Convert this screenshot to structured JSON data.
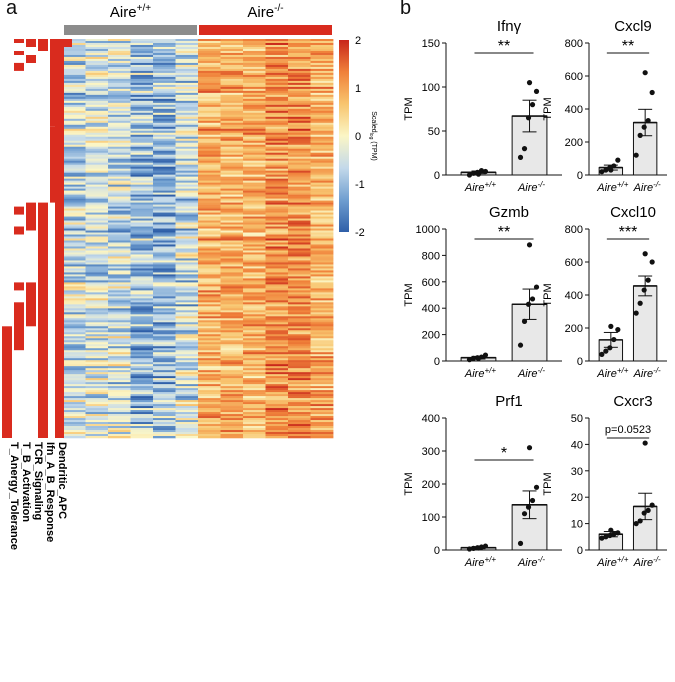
{
  "panel_labels": {
    "a": "a",
    "b": "b"
  },
  "chart_data": [
    {
      "type": "heatmap",
      "title": "",
      "groups": [
        {
          "name": "Aire",
          "superscript": "+/+",
          "color": "#8c8c8c",
          "n_columns": 6
        },
        {
          "name": "Aire",
          "superscript": "-/-",
          "color": "#d92b1e",
          "n_columns": 6
        }
      ],
      "n_rows": 200,
      "colorbar": {
        "label": "Scaled",
        "sublabel": "log",
        "label_suffix": "(TPM)",
        "ticks": [
          2,
          1,
          0,
          -1,
          -2
        ],
        "range": [
          -2,
          2
        ]
      },
      "scale_colors": [
        "#2f5fa8",
        "#6f9ed0",
        "#c3d9ea",
        "#fbf6c6",
        "#f8c56f",
        "#f0813a",
        "#c8261a"
      ],
      "annotation_color": "#d92b1e",
      "annotations": [
        {
          "label": "T_Anergy_Tolerance",
          "segments": [
            [
              0.72,
              1.0
            ]
          ]
        },
        {
          "label": "T_B_Activation",
          "segments": [
            [
              0.0,
              0.01
            ],
            [
              0.03,
              0.04
            ],
            [
              0.06,
              0.08
            ],
            [
              0.42,
              0.44
            ],
            [
              0.47,
              0.49
            ],
            [
              0.61,
              0.63
            ],
            [
              0.66,
              0.78
            ]
          ]
        },
        {
          "label": "TCR_Signaling",
          "segments": [
            [
              0.0,
              0.02
            ],
            [
              0.04,
              0.06
            ],
            [
              0.41,
              0.48
            ],
            [
              0.61,
              0.72
            ]
          ]
        },
        {
          "label": "Ifn_A_B_Response",
          "segments": [
            [
              0.0,
              0.03
            ],
            [
              0.41,
              1.0
            ]
          ]
        },
        {
          "label": "Dendritic_APC",
          "segments": [
            [
              0.0,
              0.22
            ],
            [
              0.22,
              0.41
            ]
          ]
        },
        {
          "label": "",
          "segments": [
            [
              0.0,
              0.02
            ]
          ]
        }
      ]
    },
    {
      "type": "bar",
      "title": "Ifnγ",
      "categories": [
        "Aire+/+",
        "Aire-/-"
      ],
      "values": [
        3,
        67
      ],
      "errors": [
        1.5,
        18
      ],
      "points": [
        [
          0,
          2,
          3,
          5,
          4,
          1
        ],
        [
          20,
          30,
          65,
          80,
          95,
          105
        ]
      ],
      "ylabel": "TPM",
      "ylim": [
        0,
        150
      ],
      "yticks": [
        0,
        50,
        100,
        150
      ],
      "significance": "**"
    },
    {
      "type": "bar",
      "title": "Cxcl9",
      "categories": [
        "Aire+/+",
        "Aire-/-"
      ],
      "values": [
        45,
        318
      ],
      "errors": [
        15,
        80
      ],
      "points": [
        [
          20,
          30,
          45,
          55,
          90,
          30
        ],
        [
          120,
          240,
          290,
          330,
          500,
          620
        ]
      ],
      "ylabel": "TPM",
      "ylim": [
        0,
        800
      ],
      "yticks": [
        0,
        200,
        400,
        600,
        800
      ],
      "significance": "**"
    },
    {
      "type": "bar",
      "title": "Gzmb",
      "categories": [
        "Aire+/+",
        "Aire-/-"
      ],
      "values": [
        25,
        430
      ],
      "errors": [
        10,
        115
      ],
      "points": [
        [
          10,
          20,
          25,
          30,
          45,
          20
        ],
        [
          120,
          300,
          430,
          470,
          560,
          880
        ]
      ],
      "ylabel": "TPM",
      "ylim": [
        0,
        1000
      ],
      "yticks": [
        0,
        200,
        400,
        600,
        800,
        1000
      ],
      "significance": "**"
    },
    {
      "type": "bar",
      "title": "Cxcl10",
      "categories": [
        "Aire+/+",
        "Aire-/-"
      ],
      "values": [
        128,
        455
      ],
      "errors": [
        45,
        60
      ],
      "points": [
        [
          40,
          60,
          80,
          130,
          190,
          210
        ],
        [
          290,
          350,
          430,
          490,
          600,
          650
        ]
      ],
      "ylabel": "TPM",
      "ylim": [
        0,
        800
      ],
      "yticks": [
        0,
        200,
        400,
        600,
        800
      ],
      "significance": "***"
    },
    {
      "type": "bar",
      "title": "Prf1",
      "categories": [
        "Aire+/+",
        "Aire-/-"
      ],
      "values": [
        7,
        137
      ],
      "errors": [
        3,
        42
      ],
      "points": [
        [
          3,
          5,
          7,
          9,
          12,
          6
        ],
        [
          20,
          110,
          130,
          150,
          190,
          310
        ]
      ],
      "ylabel": "TPM",
      "ylim": [
        0,
        400
      ],
      "yticks": [
        0,
        100,
        200,
        300,
        400
      ],
      "significance": "*"
    },
    {
      "type": "bar",
      "title": "Cxcr3",
      "categories": [
        "Aire+/+",
        "Aire-/-"
      ],
      "values": [
        6,
        16.5
      ],
      "errors": [
        1,
        5
      ],
      "points": [
        [
          4.5,
          5,
          5.5,
          6,
          6.5,
          7.5
        ],
        [
          10,
          11,
          14,
          15,
          17,
          40.5
        ]
      ],
      "ylabel": "TPM",
      "ylim": [
        0,
        50
      ],
      "yticks": [
        0,
        10,
        20,
        30,
        40,
        50
      ],
      "significance": "p=0.0523"
    }
  ]
}
